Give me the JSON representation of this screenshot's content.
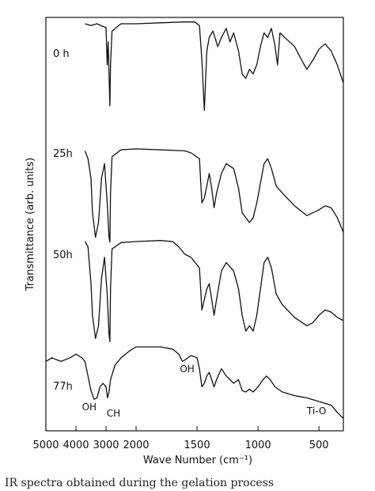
{
  "chart_data": {
    "type": "line",
    "title": "",
    "xlabel": "Wave Number (cm⁻¹)",
    "ylabel": "Transmittance (arb. units)",
    "xlim": [
      5000,
      300
    ],
    "x_ticks": [
      {
        "value": 5000,
        "label": "5000"
      },
      {
        "value": 4000,
        "label": "4000"
      },
      {
        "value": 3000,
        "label": "3000"
      },
      {
        "value": 2000,
        "label": "2000"
      },
      {
        "value": 1500,
        "label": "1500"
      },
      {
        "value": 1000,
        "label": "1000"
      },
      {
        "value": 500,
        "label": "500"
      }
    ],
    "axis_break": {
      "from": 2000,
      "to": 1500,
      "note": "scale changes at 2000 cm-1"
    },
    "grid": false,
    "legend": "none",
    "series": [
      {
        "name": "0 h",
        "offset": 0,
        "points": [
          [
            3700,
            1.0
          ],
          [
            3500,
            0.98
          ],
          [
            3300,
            1.0
          ],
          [
            3100,
            0.97
          ],
          [
            3000,
            0.96
          ],
          [
            2960,
            0.55
          ],
          [
            2930,
            0.8
          ],
          [
            2900,
            0.45
          ],
          [
            2870,
            0.1
          ],
          [
            2850,
            0.55
          ],
          [
            2800,
            0.92
          ],
          [
            2500,
            1.0
          ],
          [
            2000,
            1.0
          ],
          [
            1800,
            1.01
          ],
          [
            1600,
            1.02
          ],
          [
            1520,
            1.02
          ],
          [
            1480,
            0.98
          ],
          [
            1460,
            0.6
          ],
          [
            1440,
            0.05
          ],
          [
            1420,
            0.7
          ],
          [
            1400,
            0.85
          ],
          [
            1370,
            0.92
          ],
          [
            1330,
            0.75
          ],
          [
            1300,
            0.85
          ],
          [
            1260,
            0.95
          ],
          [
            1230,
            0.8
          ],
          [
            1200,
            0.9
          ],
          [
            1160,
            0.7
          ],
          [
            1130,
            0.45
          ],
          [
            1100,
            0.4
          ],
          [
            1070,
            0.5
          ],
          [
            1040,
            0.45
          ],
          [
            1010,
            0.55
          ],
          [
            980,
            0.75
          ],
          [
            950,
            0.9
          ],
          [
            920,
            0.85
          ],
          [
            890,
            0.95
          ],
          [
            860,
            0.75
          ],
          [
            840,
            0.55
          ],
          [
            820,
            0.9
          ],
          [
            780,
            0.85
          ],
          [
            700,
            0.75
          ],
          [
            650,
            0.62
          ],
          [
            600,
            0.5
          ],
          [
            550,
            0.6
          ],
          [
            500,
            0.72
          ],
          [
            450,
            0.78
          ],
          [
            400,
            0.7
          ],
          [
            350,
            0.55
          ],
          [
            300,
            0.35
          ]
        ]
      },
      {
        "name": "25h",
        "offset": 0,
        "points": [
          [
            3700,
            0.98
          ],
          [
            3600,
            0.9
          ],
          [
            3500,
            0.7
          ],
          [
            3450,
            0.35
          ],
          [
            3350,
            0.1
          ],
          [
            3250,
            0.25
          ],
          [
            3150,
            0.7
          ],
          [
            3050,
            0.85
          ],
          [
            2960,
            0.45
          ],
          [
            2900,
            0.1
          ],
          [
            2870,
            0.05
          ],
          [
            2850,
            0.55
          ],
          [
            2800,
            0.92
          ],
          [
            2500,
            0.99
          ],
          [
            2000,
            1.0
          ],
          [
            1800,
            0.99
          ],
          [
            1600,
            0.98
          ],
          [
            1550,
            0.96
          ],
          [
            1480,
            0.9
          ],
          [
            1460,
            0.45
          ],
          [
            1440,
            0.5
          ],
          [
            1420,
            0.62
          ],
          [
            1400,
            0.75
          ],
          [
            1380,
            0.6
          ],
          [
            1360,
            0.4
          ],
          [
            1340,
            0.55
          ],
          [
            1300,
            0.75
          ],
          [
            1260,
            0.85
          ],
          [
            1200,
            0.8
          ],
          [
            1160,
            0.6
          ],
          [
            1130,
            0.35
          ],
          [
            1100,
            0.3
          ],
          [
            1070,
            0.25
          ],
          [
            1040,
            0.3
          ],
          [
            1010,
            0.45
          ],
          [
            980,
            0.65
          ],
          [
            950,
            0.85
          ],
          [
            920,
            0.9
          ],
          [
            890,
            0.8
          ],
          [
            850,
            0.62
          ],
          [
            800,
            0.55
          ],
          [
            700,
            0.42
          ],
          [
            600,
            0.32
          ],
          [
            500,
            0.38
          ],
          [
            450,
            0.42
          ],
          [
            400,
            0.4
          ],
          [
            350,
            0.3
          ],
          [
            300,
            0.15
          ]
        ]
      },
      {
        "name": "50h",
        "offset": 0,
        "points": [
          [
            3700,
            1.0
          ],
          [
            3600,
            0.95
          ],
          [
            3500,
            0.6
          ],
          [
            3450,
            0.3
          ],
          [
            3350,
            0.08
          ],
          [
            3250,
            0.2
          ],
          [
            3150,
            0.65
          ],
          [
            3050,
            0.85
          ],
          [
            2960,
            0.5
          ],
          [
            2900,
            0.12
          ],
          [
            2870,
            0.05
          ],
          [
            2850,
            0.55
          ],
          [
            2800,
            0.93
          ],
          [
            2500,
            0.99
          ],
          [
            2000,
            1.0
          ],
          [
            1800,
            1.01
          ],
          [
            1700,
            1.0
          ],
          [
            1650,
            0.95
          ],
          [
            1600,
            0.88
          ],
          [
            1550,
            0.85
          ],
          [
            1480,
            0.75
          ],
          [
            1460,
            0.35
          ],
          [
            1440,
            0.45
          ],
          [
            1420,
            0.55
          ],
          [
            1400,
            0.6
          ],
          [
            1380,
            0.45
          ],
          [
            1360,
            0.3
          ],
          [
            1340,
            0.45
          ],
          [
            1300,
            0.72
          ],
          [
            1260,
            0.8
          ],
          [
            1200,
            0.72
          ],
          [
            1160,
            0.55
          ],
          [
            1130,
            0.3
          ],
          [
            1100,
            0.15
          ],
          [
            1070,
            0.2
          ],
          [
            1040,
            0.15
          ],
          [
            1010,
            0.3
          ],
          [
            980,
            0.55
          ],
          [
            950,
            0.8
          ],
          [
            920,
            0.85
          ],
          [
            890,
            0.75
          ],
          [
            850,
            0.5
          ],
          [
            800,
            0.4
          ],
          [
            700,
            0.28
          ],
          [
            600,
            0.2
          ],
          [
            550,
            0.23
          ],
          [
            500,
            0.3
          ],
          [
            450,
            0.35
          ],
          [
            400,
            0.33
          ],
          [
            350,
            0.28
          ],
          [
            300,
            0.25
          ]
        ]
      },
      {
        "name": "77h",
        "offset": 0,
        "points": [
          [
            5000,
            0.8
          ],
          [
            4800,
            0.85
          ],
          [
            4500,
            0.8
          ],
          [
            4200,
            0.85
          ],
          [
            4000,
            0.9
          ],
          [
            3800,
            0.85
          ],
          [
            3700,
            0.8
          ],
          [
            3600,
            0.6
          ],
          [
            3500,
            0.4
          ],
          [
            3400,
            0.28
          ],
          [
            3300,
            0.3
          ],
          [
            3200,
            0.45
          ],
          [
            3100,
            0.5
          ],
          [
            3000,
            0.45
          ],
          [
            2950,
            0.3
          ],
          [
            2900,
            0.38
          ],
          [
            2850,
            0.55
          ],
          [
            2700,
            0.75
          ],
          [
            2500,
            0.85
          ],
          [
            2200,
            0.95
          ],
          [
            2000,
            1.0
          ],
          [
            1800,
            1.0
          ],
          [
            1700,
            0.97
          ],
          [
            1650,
            0.9
          ],
          [
            1620,
            0.8
          ],
          [
            1600,
            0.82
          ],
          [
            1550,
            0.88
          ],
          [
            1500,
            0.85
          ],
          [
            1480,
            0.7
          ],
          [
            1460,
            0.45
          ],
          [
            1440,
            0.5
          ],
          [
            1420,
            0.6
          ],
          [
            1400,
            0.65
          ],
          [
            1380,
            0.55
          ],
          [
            1360,
            0.45
          ],
          [
            1340,
            0.55
          ],
          [
            1300,
            0.7
          ],
          [
            1260,
            0.6
          ],
          [
            1200,
            0.5
          ],
          [
            1160,
            0.55
          ],
          [
            1130,
            0.4
          ],
          [
            1100,
            0.38
          ],
          [
            1070,
            0.42
          ],
          [
            1040,
            0.38
          ],
          [
            1000,
            0.45
          ],
          [
            960,
            0.55
          ],
          [
            930,
            0.6
          ],
          [
            900,
            0.55
          ],
          [
            860,
            0.45
          ],
          [
            800,
            0.38
          ],
          [
            700,
            0.33
          ],
          [
            600,
            0.3
          ],
          [
            500,
            0.25
          ],
          [
            400,
            0.2
          ],
          [
            350,
            0.1
          ],
          [
            300,
            0.02
          ]
        ]
      }
    ],
    "annotations": [
      {
        "text": "OH",
        "series": "77h",
        "x": 3400
      },
      {
        "text": "CH",
        "series": "77h",
        "x": 2910
      },
      {
        "text": "OH",
        "series": "77h",
        "x": 1620
      },
      {
        "text": "Ti-O",
        "series": "77h",
        "x": 520
      }
    ]
  },
  "caption_fragment": "IR spectra obtained during the gelation process"
}
